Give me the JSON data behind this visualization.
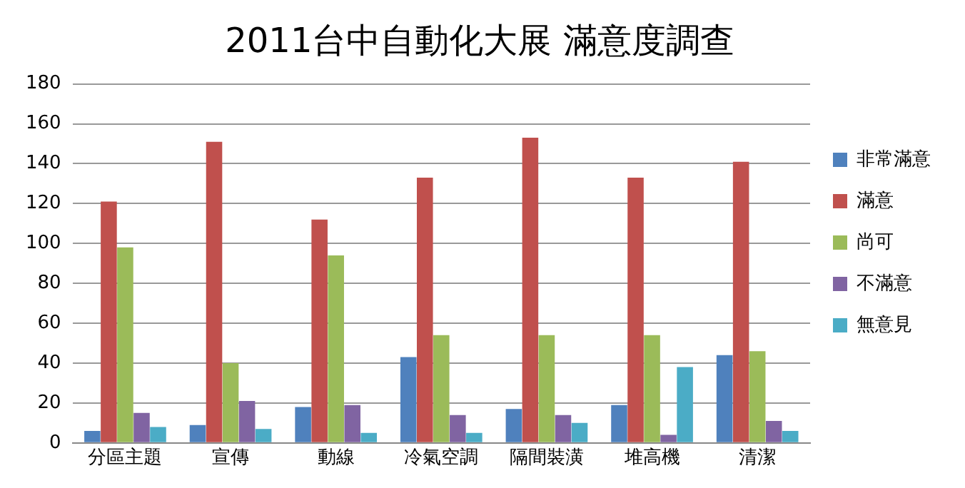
{
  "chart_data": {
    "type": "bar",
    "title": "2011台中自動化大展 滿意度調查",
    "categories": [
      "分區主題",
      "宣傳",
      "動線",
      "冷氣空調",
      "隔間裝潢",
      "堆高機",
      "清潔"
    ],
    "series": [
      {
        "name": "非常滿意",
        "color": "#4f81bd",
        "values": [
          6,
          9,
          18,
          43,
          17,
          19,
          44
        ]
      },
      {
        "name": "滿意",
        "color": "#c0504d",
        "values": [
          121,
          151,
          112,
          133,
          153,
          133,
          141
        ]
      },
      {
        "name": "尚可",
        "color": "#9bbb59",
        "values": [
          98,
          40,
          94,
          54,
          54,
          54,
          46
        ]
      },
      {
        "name": "不滿意",
        "color": "#8064a2",
        "values": [
          15,
          21,
          19,
          14,
          14,
          4,
          11
        ]
      },
      {
        "name": "無意見",
        "color": "#4bacc6",
        "values": [
          8,
          7,
          5,
          5,
          10,
          38,
          6
        ]
      }
    ],
    "ylim": [
      0,
      180
    ],
    "yticks": [
      0,
      20,
      40,
      60,
      80,
      100,
      120,
      140,
      160,
      180
    ],
    "grid": "y",
    "legend": "right"
  }
}
